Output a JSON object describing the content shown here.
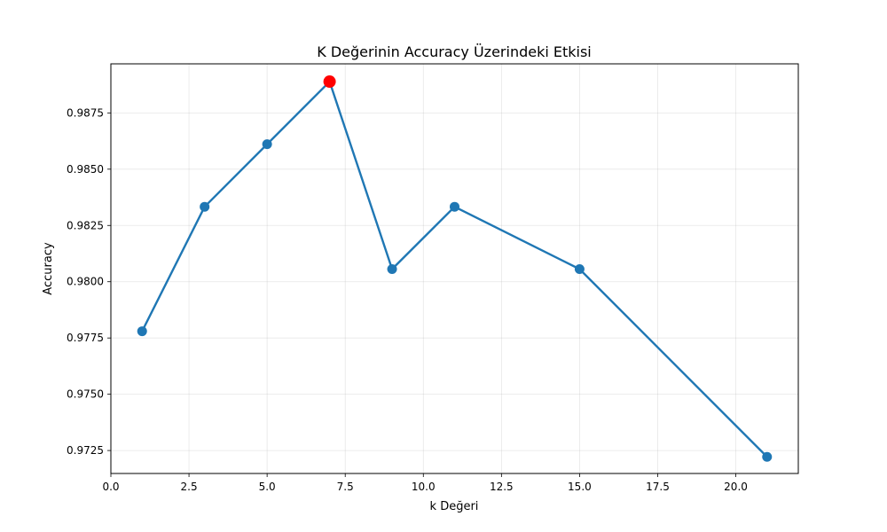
{
  "chart_data": {
    "type": "line",
    "title": "K Değerinin Accuracy Üzerindeki Etkisi",
    "xlabel": "k Değeri",
    "ylabel": "Accuracy",
    "xlim": [
      0,
      22
    ],
    "ylim": [
      0.97148,
      0.98968
    ],
    "grid": true,
    "x_ticks": [
      0.0,
      2.5,
      5.0,
      7.5,
      10.0,
      12.5,
      15.0,
      17.5,
      20.0
    ],
    "x_tick_labels": [
      "0.0",
      "2.5",
      "5.0",
      "7.5",
      "10.0",
      "12.5",
      "15.0",
      "17.5",
      "20.0"
    ],
    "y_ticks": [
      0.9725,
      0.975,
      0.9775,
      0.98,
      0.9825,
      0.985,
      0.9875
    ],
    "y_tick_labels": [
      "0.9725",
      "0.9750",
      "0.9775",
      "0.9800",
      "0.9825",
      "0.9850",
      "0.9875"
    ],
    "series": [
      {
        "x": [
          1,
          3,
          5,
          7,
          9,
          11,
          15,
          21
        ],
        "y": [
          0.9778,
          0.98333,
          0.98611,
          0.98889,
          0.98056,
          0.98333,
          0.98056,
          0.97222
        ],
        "color": "#1f77b4"
      }
    ],
    "highlight": {
      "x": 7,
      "y": 0.98889,
      "color": "#ff0000"
    }
  }
}
